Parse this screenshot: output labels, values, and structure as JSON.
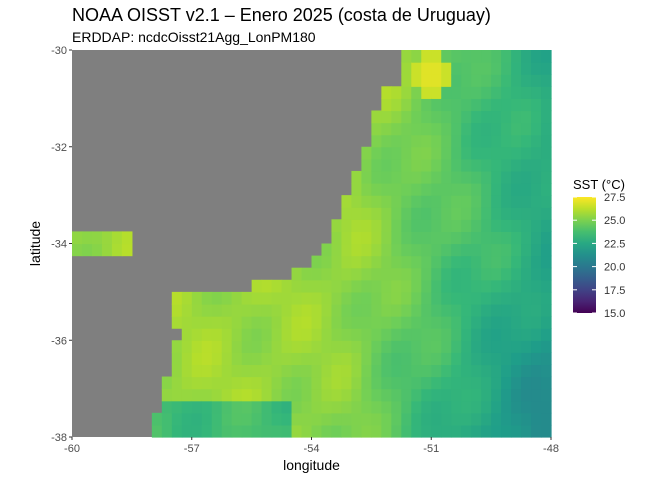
{
  "chart_data": {
    "type": "heatmap",
    "title": "NOAA OISST v2.1 – Enero 2025 (costa de  Uruguay)",
    "subtitle": "ERDDAP: ncdcOisst21Agg_LonPM180",
    "xlabel": "longitude",
    "ylabel": "latitude",
    "xlim": [
      -60,
      -48
    ],
    "ylim": [
      -38,
      -30
    ],
    "x_ticks": [
      -60,
      -57,
      -54,
      -51,
      -48
    ],
    "y_ticks": [
      -38,
      -36,
      -34,
      -32,
      -30
    ],
    "x_tick_labels": [
      "-60",
      "-57",
      "-54",
      "-51",
      "-48"
    ],
    "y_tick_labels": [
      "-38",
      "-36",
      "-34",
      "-32",
      "-30"
    ],
    "grid_resolution_deg": 0.25,
    "land_color": "#7f7f7f",
    "colormap": "viridis",
    "legend": {
      "title": "SST (°C)",
      "range": [
        15.0,
        27.5
      ],
      "ticks": [
        15.0,
        17.5,
        20.0,
        22.5,
        25.0,
        27.5
      ],
      "tick_labels": [
        "15.0",
        "17.5",
        "20.0",
        "22.5",
        "25.0",
        "27.5"
      ],
      "position": "right"
    },
    "sst_summary": {
      "min_approx": 21.0,
      "max_approx": 27.5,
      "nearshore_approx": 25.5,
      "offshore_southeast_approx": 21.8,
      "hotspot_cells": [
        {
          "lon": -58.0,
          "lat": -34.4,
          "sst": 27.2
        },
        {
          "lon": -51.0,
          "lat": -30.5,
          "sst": 27.3
        }
      ]
    }
  }
}
